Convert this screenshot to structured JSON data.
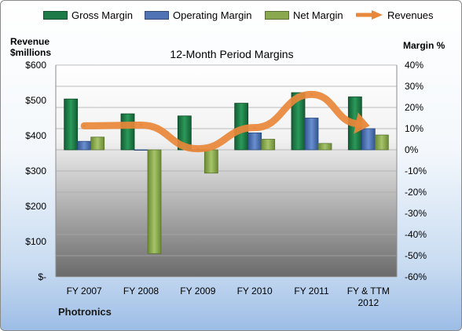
{
  "chart_data": {
    "type": "bar",
    "title": "12-Month Period Margins",
    "categories": [
      "FY 2007",
      "FY 2008",
      "FY 2009",
      "FY 2010",
      "FY 2011",
      "FY & TTM 2012"
    ],
    "series": [
      {
        "name": "Gross Margin",
        "axis": "right",
        "color": "#1e7b48",
        "values": [
          24,
          17,
          16,
          22,
          27,
          25
        ]
      },
      {
        "name": "Operating Margin",
        "axis": "right",
        "color": "#4f73b5",
        "values": [
          4,
          0,
          0,
          8,
          15,
          10
        ]
      },
      {
        "name": "Net Margin",
        "axis": "right",
        "color": "#8aa94e",
        "values": [
          6,
          -49,
          -11,
          5,
          3,
          7
        ]
      },
      {
        "name": "Revenues",
        "axis": "left",
        "type": "line",
        "color": "#e8873a",
        "values": [
          428,
          430,
          363,
          423,
          517,
          434
        ]
      }
    ],
    "left_axis": {
      "label_line1": "Revenue",
      "label_line2": "$millions",
      "ylim": [
        0,
        600
      ],
      "ticks": [
        "$600",
        "$500",
        "$400",
        "$300",
        "$200",
        "$100",
        "$-"
      ]
    },
    "right_axis": {
      "label": "Margin %",
      "ylim": [
        -60,
        40
      ],
      "ticks": [
        "40%",
        "30%",
        "20%",
        "10%",
        "0%",
        "-10%",
        "-20%",
        "-30%",
        "-40%",
        "-50%",
        "-60%"
      ]
    },
    "x_tick_labels": [
      [
        "FY 2007"
      ],
      [
        "FY 2008"
      ],
      [
        "FY 2009"
      ],
      [
        "FY 2010"
      ],
      [
        "FY 2011"
      ],
      [
        "FY & TTM",
        "2012"
      ]
    ],
    "legend_position": "top",
    "grid": true
  },
  "company": "Photronics"
}
